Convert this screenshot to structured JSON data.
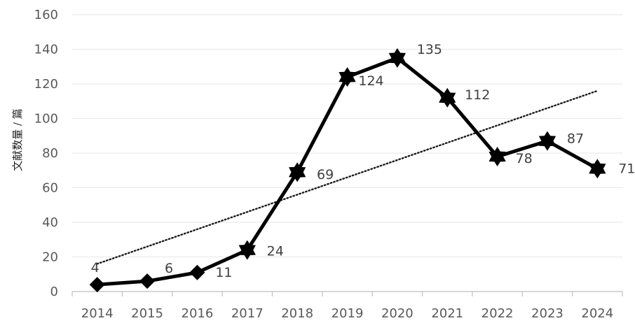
{
  "chart_data": {
    "type": "line",
    "categories": [
      "2014",
      "2015",
      "2016",
      "2017",
      "2018",
      "2019",
      "2020",
      "2021",
      "2022",
      "2023",
      "2024"
    ],
    "values": [
      4,
      6,
      11,
      24,
      69,
      124,
      135,
      112,
      78,
      87,
      71
    ],
    "data_labels": [
      "4",
      "6",
      "11",
      "24",
      "69",
      "124",
      "135",
      "112",
      "78",
      "87",
      "71"
    ],
    "ylabel": "文献数量 / 篇",
    "xlabel": "",
    "ylim": [
      0,
      160
    ],
    "yticks": [
      "0",
      "20",
      "40",
      "60",
      "80",
      "100",
      "120",
      "140",
      "160"
    ],
    "grid": true,
    "legend": "none",
    "trendline": {
      "type": "linear",
      "style": "dotted",
      "start": 16,
      "end": 116
    },
    "colors": {
      "line": "#000000",
      "grid": "#e6e6e6",
      "axis": "#bfbfbf",
      "tick_text": "#595959"
    }
  }
}
